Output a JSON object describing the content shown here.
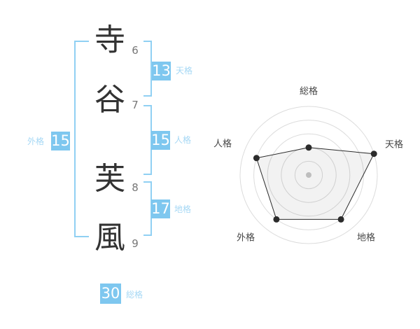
{
  "name": {
    "characters": [
      {
        "char": "寺",
        "strokes": "6"
      },
      {
        "char": "谷",
        "strokes": "7"
      },
      {
        "char": "芙",
        "strokes": "8"
      },
      {
        "char": "風",
        "strokes": "9"
      }
    ]
  },
  "kaku": {
    "tenkaku": {
      "label": "天格",
      "value": "13"
    },
    "jinkaku": {
      "label": "人格",
      "value": "15"
    },
    "chikaku": {
      "label": "地格",
      "value": "17"
    },
    "gaikaku": {
      "label": "外格",
      "value": "15"
    },
    "soukaku": {
      "label": "総格",
      "value": "30"
    }
  },
  "colors": {
    "badge_blue": "#7ec7ef",
    "bracket_blue": "#90d0f3",
    "kaku_label_blue": "#a6d8f5",
    "kanji_text": "#333333",
    "stroke_number_gray": "#777777",
    "radar_grid": "#dcdcdc",
    "radar_label": "#444444",
    "radar_line": "#2b2b2b",
    "radar_fill": "rgba(0,0,0,0.05)",
    "radar_center_dot": "#c9c9c9"
  },
  "chart_data": {
    "type": "radar",
    "categories": [
      "総格",
      "天格",
      "地格",
      "外格",
      "人格"
    ],
    "values": [
      2,
      5,
      4,
      4,
      4
    ],
    "scale_max": 5,
    "rings": 5,
    "start_angle_deg": 90,
    "direction": "clockwise",
    "grid": "concentric-circles",
    "legend": "none"
  }
}
